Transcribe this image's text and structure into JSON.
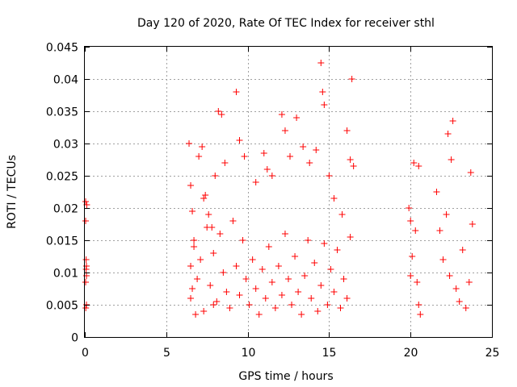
{
  "chart_data": {
    "type": "scatter",
    "title": "Day 120 of 2020, Rate Of TEC Index for receiver sthl",
    "xlabel": "GPS time / hours",
    "ylabel": "ROTI / TECUs",
    "xlim": [
      0,
      25
    ],
    "ylim": [
      0,
      0.045
    ],
    "xticks": [
      0,
      5,
      10,
      15,
      20,
      25
    ],
    "yticks": [
      0,
      0.005,
      0.01,
      0.015,
      0.02,
      0.025,
      0.03,
      0.035,
      0.04,
      0.045
    ],
    "xtick_labels": [
      "0",
      "5",
      "10",
      "15",
      "20",
      "25"
    ],
    "ytick_labels": [
      "0",
      "0.005",
      "0.01",
      "0.015",
      "0.02",
      "0.025",
      "0.03",
      "0.035",
      "0.04",
      "0.045"
    ],
    "grid": true,
    "marker": "+",
    "color": "#ff0000",
    "series": [
      {
        "x": [
          0.05,
          0.05,
          0.08,
          0.1,
          0.05,
          0.1,
          0.06,
          0.12,
          0.08,
          0.1,
          6.4,
          6.5,
          6.6,
          6.7,
          6.5,
          6.6,
          6.8,
          7.0,
          7.2,
          7.4,
          7.6,
          7.8,
          8.0,
          7.3,
          7.9,
          8.2,
          8.4,
          8.6,
          9.3,
          9.5,
          9.8,
          10.5,
          11.0,
          11.2,
          11.5,
          12.1,
          12.3,
          12.6,
          13.0,
          13.4,
          13.8,
          14.2,
          14.5,
          14.6,
          14.7,
          15.0,
          15.3,
          15.8,
          16.1,
          16.3,
          16.4,
          16.5,
          6.5,
          6.7,
          6.9,
          7.1,
          7.3,
          7.5,
          7.7,
          7.9,
          8.1,
          8.3,
          8.5,
          8.7,
          8.9,
          9.1,
          9.3,
          9.5,
          9.7,
          9.9,
          10.1,
          10.3,
          10.5,
          10.7,
          10.9,
          11.1,
          11.3,
          11.5,
          11.7,
          11.9,
          12.1,
          12.3,
          12.5,
          12.7,
          12.9,
          13.1,
          13.3,
          13.5,
          13.7,
          13.9,
          14.1,
          14.3,
          14.5,
          14.7,
          14.9,
          15.1,
          15.3,
          15.5,
          15.7,
          15.9,
          16.1,
          16.3,
          19.9,
          20.0,
          20.1,
          20.3,
          20.4,
          20.5,
          20.6,
          20.2,
          20.5,
          20.0,
          21.6,
          21.8,
          22.0,
          22.2,
          22.4,
          22.5,
          22.6,
          22.8,
          23.0,
          23.2,
          23.4,
          23.6,
          23.8,
          22.3,
          23.7
        ],
        "y": [
          0.021,
          0.018,
          0.012,
          0.0095,
          0.0085,
          0.005,
          0.0045,
          0.0205,
          0.0105,
          0.011,
          0.03,
          0.0235,
          0.0195,
          0.015,
          0.011,
          0.0075,
          0.0035,
          0.028,
          0.0295,
          0.022,
          0.019,
          0.017,
          0.025,
          0.0215,
          0.005,
          0.035,
          0.0345,
          0.027,
          0.038,
          0.0305,
          0.028,
          0.024,
          0.0285,
          0.026,
          0.025,
          0.0345,
          0.032,
          0.028,
          0.034,
          0.0295,
          0.027,
          0.029,
          0.0425,
          0.038,
          0.036,
          0.025,
          0.0215,
          0.019,
          0.032,
          0.0275,
          0.04,
          0.0265,
          0.006,
          0.014,
          0.009,
          0.012,
          0.004,
          0.017,
          0.008,
          0.013,
          0.0055,
          0.016,
          0.01,
          0.007,
          0.0045,
          0.018,
          0.011,
          0.0065,
          0.015,
          0.009,
          0.005,
          0.012,
          0.0075,
          0.0035,
          0.0105,
          0.006,
          0.014,
          0.0085,
          0.0045,
          0.011,
          0.0065,
          0.016,
          0.009,
          0.005,
          0.0125,
          0.007,
          0.0035,
          0.0095,
          0.015,
          0.006,
          0.0115,
          0.004,
          0.008,
          0.0145,
          0.005,
          0.0105,
          0.007,
          0.0135,
          0.0045,
          0.009,
          0.006,
          0.0155,
          0.02,
          0.018,
          0.0125,
          0.0165,
          0.0085,
          0.005,
          0.0035,
          0.027,
          0.0265,
          0.0095,
          0.0225,
          0.0165,
          0.012,
          0.019,
          0.0095,
          0.0275,
          0.0335,
          0.0075,
          0.0055,
          0.0135,
          0.0045,
          0.0085,
          0.0175,
          0.0315,
          0.0255
        ]
      }
    ]
  }
}
